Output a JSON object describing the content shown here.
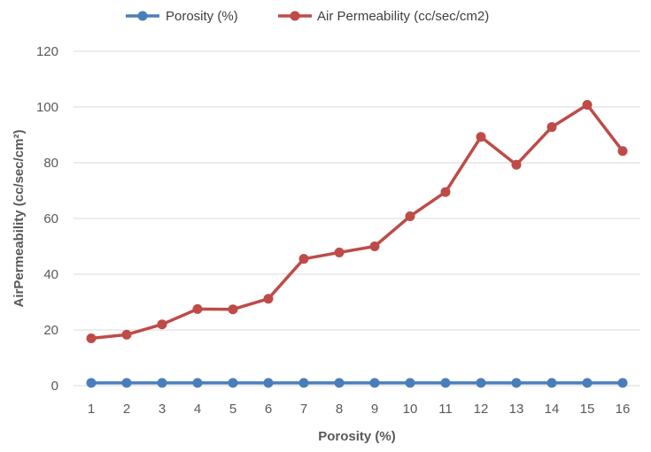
{
  "chart_data": {
    "type": "line",
    "x": [
      1,
      2,
      3,
      4,
      5,
      6,
      7,
      8,
      9,
      10,
      11,
      12,
      13,
      14,
      15,
      16
    ],
    "x_tick_labels": [
      "1",
      "2",
      "3",
      "4",
      "5",
      "6",
      "7",
      "8",
      "9",
      "10",
      "11",
      "12",
      "13",
      "14",
      "15",
      "16"
    ],
    "series": [
      {
        "name": "Porosity (%)",
        "color": "#4A7EBB",
        "values": [
          1,
          1,
          1,
          1,
          1,
          1,
          1,
          1,
          1,
          1,
          1,
          1,
          1,
          1,
          1,
          1
        ]
      },
      {
        "name": "Air Permeability (cc/sec/cm2)",
        "color": "#BE4B48",
        "values": [
          17,
          18.3,
          22,
          27.5,
          27.4,
          31.2,
          45.5,
          47.8,
          50,
          60.8,
          69.5,
          89.3,
          79.3,
          92.8,
          100.8,
          84.2
        ]
      }
    ],
    "xlabel": "Porosity (%)",
    "ylabel": "AirPermeability (cc/sec/cm²)",
    "ylim": [
      0,
      120
    ],
    "y_ticks": [
      0,
      20,
      40,
      60,
      80,
      100,
      120
    ],
    "grid": "horizontal",
    "legend_position": "top"
  }
}
